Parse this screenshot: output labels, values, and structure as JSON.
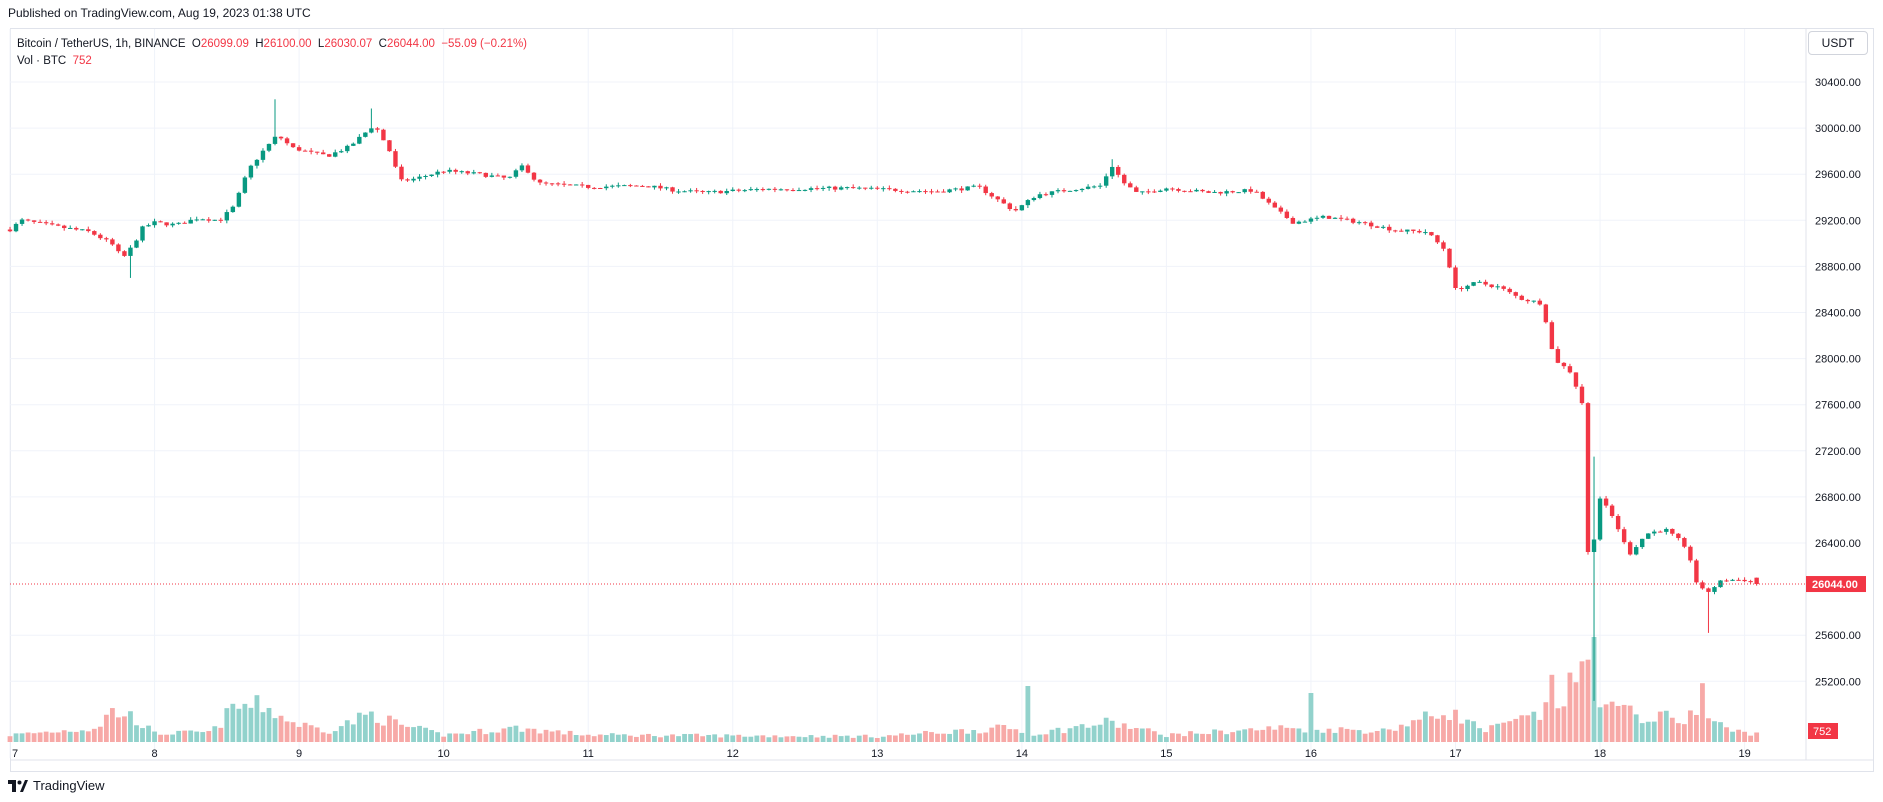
{
  "header": {
    "published": "Published on TradingView.com, Aug 19, 2023 01:38 UTC"
  },
  "legend": {
    "symbol": "Bitcoin / TetherUS, 1h, BINANCE",
    "o_label": "O",
    "o_value": "26099.09",
    "h_label": "H",
    "h_value": "26100.00",
    "l_label": "L",
    "l_value": "26030.07",
    "c_label": "C",
    "c_value": "26044.00",
    "change": "−55.09 (−0.21%)",
    "vol_label": "Vol · BTC",
    "vol_value": "752"
  },
  "currency_button": "USDT",
  "footer": {
    "brand": "TradingView"
  },
  "colors": {
    "up": "#089981",
    "down": "#f23645",
    "up_volume": "#92d2cc",
    "down_volume": "#f7a9a7",
    "grid": "#f0f3fa"
  },
  "chart_data": {
    "type": "candlestick",
    "symbol": "Bitcoin / TetherUS",
    "interval": "1h",
    "exchange": "BINANCE",
    "y_axis": {
      "ticks": [
        "30400.00",
        "30000.00",
        "29600.00",
        "29200.00",
        "28800.00",
        "28400.00",
        "28000.00",
        "27600.00",
        "27200.00",
        "26800.00",
        "26400.00",
        "25600.00",
        "25200.00"
      ],
      "ylim": [
        24560,
        30920
      ],
      "scale": "linear",
      "position": "right"
    },
    "x_axis": {
      "ticks": [
        "7",
        "8",
        "9",
        "10",
        "11",
        "12",
        "13",
        "14",
        "15",
        "16",
        "17",
        "18",
        "19"
      ],
      "unit": "day (August 2023)",
      "range": [
        7.0,
        19.0833
      ]
    },
    "last_price": "26044.00",
    "last_volume": "752",
    "grid": true,
    "keyframes": [
      {
        "t": 7.0,
        "p": 29120
      },
      {
        "t": 7.08,
        "p": 29200
      },
      {
        "t": 7.3,
        "p": 29150
      },
      {
        "t": 7.55,
        "p": 29100
      },
      {
        "t": 7.7,
        "p": 29000
      },
      {
        "t": 7.78,
        "p": 28870
      },
      {
        "t": 7.85,
        "p": 28980
      },
      {
        "t": 7.92,
        "p": 29140
      },
      {
        "t": 8.0,
        "p": 29180
      },
      {
        "t": 8.15,
        "p": 29160
      },
      {
        "t": 8.3,
        "p": 29220
      },
      {
        "t": 8.45,
        "p": 29200
      },
      {
        "t": 8.55,
        "p": 29320
      },
      {
        "t": 8.65,
        "p": 29640
      },
      {
        "t": 8.75,
        "p": 29800
      },
      {
        "t": 8.85,
        "p": 29940
      },
      {
        "t": 8.95,
        "p": 29830
      },
      {
        "t": 9.1,
        "p": 29780
      },
      {
        "t": 9.2,
        "p": 29760
      },
      {
        "t": 9.35,
        "p": 29840
      },
      {
        "t": 9.52,
        "p": 30030
      },
      {
        "t": 9.62,
        "p": 29820
      },
      {
        "t": 9.7,
        "p": 29540
      },
      {
        "t": 9.8,
        "p": 29560
      },
      {
        "t": 10.0,
        "p": 29630
      },
      {
        "t": 10.25,
        "p": 29600
      },
      {
        "t": 10.45,
        "p": 29560
      },
      {
        "t": 10.55,
        "p": 29680
      },
      {
        "t": 10.65,
        "p": 29520
      },
      {
        "t": 11.0,
        "p": 29490
      },
      {
        "t": 11.4,
        "p": 29500
      },
      {
        "t": 11.6,
        "p": 29460
      },
      {
        "t": 11.8,
        "p": 29440
      },
      {
        "t": 12.2,
        "p": 29470
      },
      {
        "t": 12.8,
        "p": 29480
      },
      {
        "t": 13.4,
        "p": 29450
      },
      {
        "t": 13.7,
        "p": 29490
      },
      {
        "t": 13.95,
        "p": 29280
      },
      {
        "t": 14.1,
        "p": 29420
      },
      {
        "t": 14.35,
        "p": 29470
      },
      {
        "t": 14.55,
        "p": 29500
      },
      {
        "t": 14.62,
        "p": 29680
      },
      {
        "t": 14.7,
        "p": 29530
      },
      {
        "t": 14.8,
        "p": 29430
      },
      {
        "t": 15.0,
        "p": 29480
      },
      {
        "t": 15.3,
        "p": 29440
      },
      {
        "t": 15.6,
        "p": 29460
      },
      {
        "t": 15.75,
        "p": 29300
      },
      {
        "t": 15.88,
        "p": 29180
      },
      {
        "t": 16.1,
        "p": 29230
      },
      {
        "t": 16.35,
        "p": 29180
      },
      {
        "t": 16.6,
        "p": 29110
      },
      {
        "t": 16.8,
        "p": 29100
      },
      {
        "t": 16.93,
        "p": 28940
      },
      {
        "t": 17.0,
        "p": 28600
      },
      {
        "t": 17.15,
        "p": 28660
      },
      {
        "t": 17.3,
        "p": 28620
      },
      {
        "t": 17.45,
        "p": 28520
      },
      {
        "t": 17.6,
        "p": 28480
      },
      {
        "t": 17.68,
        "p": 28000
      },
      {
        "t": 17.8,
        "p": 27880
      },
      {
        "t": 17.88,
        "p": 27600
      },
      {
        "t": 17.92,
        "p": 26200
      },
      {
        "t": 17.97,
        "p": 26520
      },
      {
        "t": 18.0,
        "p": 26790
      },
      {
        "t": 18.1,
        "p": 26600
      },
      {
        "t": 18.2,
        "p": 26300
      },
      {
        "t": 18.32,
        "p": 26480
      },
      {
        "t": 18.45,
        "p": 26520
      },
      {
        "t": 18.55,
        "p": 26420
      },
      {
        "t": 18.62,
        "p": 26280
      },
      {
        "t": 18.68,
        "p": 26000
      },
      {
        "t": 18.75,
        "p": 25980
      },
      {
        "t": 18.85,
        "p": 26080
      },
      {
        "t": 19.0,
        "p": 26080
      },
      {
        "t": 19.0833,
        "p": 26044
      }
    ],
    "volume_keyframes": [
      {
        "t": 7.0,
        "v": 0.05
      },
      {
        "t": 7.6,
        "v": 0.1
      },
      {
        "t": 7.7,
        "v": 0.22
      },
      {
        "t": 7.85,
        "v": 0.18
      },
      {
        "t": 8.0,
        "v": 0.06
      },
      {
        "t": 8.4,
        "v": 0.07
      },
      {
        "t": 8.55,
        "v": 0.25
      },
      {
        "t": 8.75,
        "v": 0.26
      },
      {
        "t": 8.95,
        "v": 0.14
      },
      {
        "t": 9.2,
        "v": 0.08
      },
      {
        "t": 9.5,
        "v": 0.2
      },
      {
        "t": 9.7,
        "v": 0.12
      },
      {
        "t": 10.0,
        "v": 0.05
      },
      {
        "t": 10.5,
        "v": 0.1
      },
      {
        "t": 11.0,
        "v": 0.05
      },
      {
        "t": 13.0,
        "v": 0.04
      },
      {
        "t": 13.9,
        "v": 0.1
      },
      {
        "t": 14.1,
        "v": 0.06
      },
      {
        "t": 14.6,
        "v": 0.14
      },
      {
        "t": 15.0,
        "v": 0.05
      },
      {
        "t": 15.8,
        "v": 0.1
      },
      {
        "t": 16.5,
        "v": 0.08
      },
      {
        "t": 16.95,
        "v": 0.22
      },
      {
        "t": 17.2,
        "v": 0.08
      },
      {
        "t": 17.6,
        "v": 0.2
      },
      {
        "t": 17.75,
        "v": 0.32
      },
      {
        "t": 17.9,
        "v": 0.55
      },
      {
        "t": 18.05,
        "v": 0.25
      },
      {
        "t": 18.3,
        "v": 0.18
      },
      {
        "t": 18.55,
        "v": 0.17
      },
      {
        "t": 18.7,
        "v": 0.2
      },
      {
        "t": 18.9,
        "v": 0.08
      },
      {
        "t": 19.0833,
        "v": 0.06
      }
    ],
    "notable_candles": [
      {
        "t": 8.85,
        "wick_high": 30250,
        "note": "spike high"
      },
      {
        "t": 9.52,
        "wick_high": 30170
      },
      {
        "t": 7.82,
        "wick_low": 28700
      },
      {
        "t": 14.62,
        "wick_high": 29730
      },
      {
        "t": 17.94,
        "wick_low": 25030,
        "wick_high": 27150,
        "volume": 1.0,
        "dir": "down"
      },
      {
        "t": 17.97,
        "wick_low": 25400,
        "wick_high": 26650,
        "volume": 0.75,
        "dir": "up"
      },
      {
        "t": 17.65,
        "volume": 0.48
      },
      {
        "t": 18.73,
        "wick_low": 25620
      },
      {
        "t": 18.7,
        "volume": 0.42
      },
      {
        "t": 14.05,
        "volume": 0.4
      },
      {
        "t": 16.0,
        "volume": 0.35
      }
    ]
  }
}
